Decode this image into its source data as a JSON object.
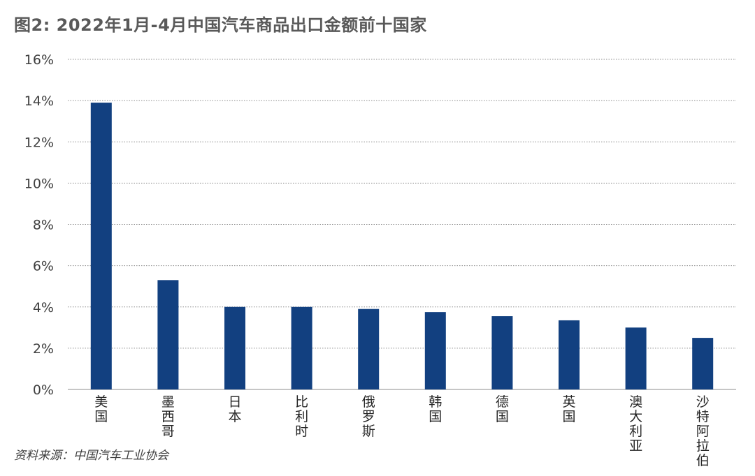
{
  "chart_data": {
    "type": "bar",
    "title": "图2: 2022年1月-4月中国汽车商品出口金额前十国家",
    "source": "资料来源：中国汽车工业协会",
    "categories": [
      "美国",
      "墨西哥",
      "日本",
      "比利时",
      "俄罗斯",
      "韩国",
      "德国",
      "英国",
      "澳大利亚",
      "沙特阿拉伯"
    ],
    "values": [
      13.9,
      5.3,
      4.0,
      4.0,
      3.9,
      3.75,
      3.55,
      3.35,
      3.0,
      2.5
    ],
    "unit": "%",
    "ylim": [
      0,
      16
    ],
    "yticks": [
      "0%",
      "2%",
      "4%",
      "6%",
      "8%",
      "10%",
      "12%",
      "14%",
      "16%"
    ],
    "grid": true,
    "bar_color": "#124080",
    "legend": "none"
  }
}
